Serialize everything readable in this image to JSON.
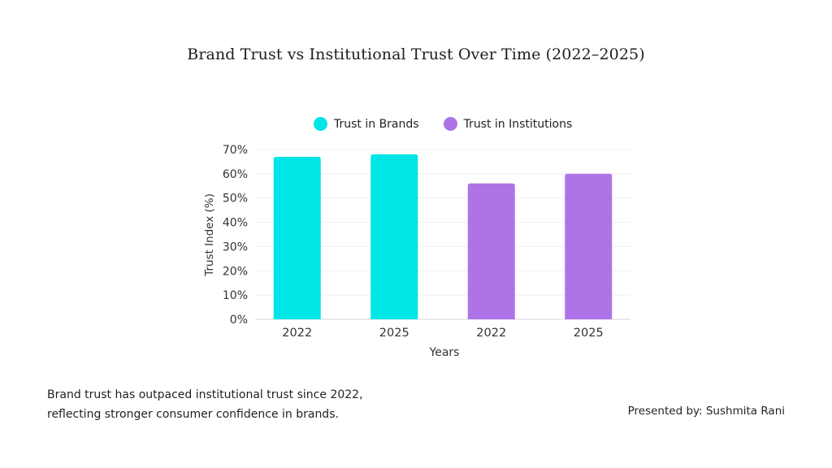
{
  "chart_data": {
    "type": "bar",
    "title": "Brand Trust vs Institutional Trust Over Time (2022–2025)",
    "xlabel": "Years",
    "ylabel": "Trust Index (%)",
    "ylim": [
      0,
      70
    ],
    "yticks": [
      "0%",
      "10%",
      "20%",
      "30%",
      "40%",
      "50%",
      "60%",
      "70%"
    ],
    "ytick_values": [
      0,
      10,
      20,
      30,
      40,
      50,
      60,
      70
    ],
    "grid": true,
    "legend_position": "top-center",
    "categories": [
      "2022",
      "2025",
      "2022",
      "2025"
    ],
    "series": [
      {
        "name": "Trust in Brands",
        "color": "#00E5E5",
        "values": [
          67,
          68,
          null,
          null
        ]
      },
      {
        "name": "Trust in Institutions",
        "color": "#AE73E6",
        "values": [
          null,
          null,
          56,
          60
        ]
      }
    ]
  },
  "caption": {
    "line1": "Brand trust has outpaced institutional trust since 2022,",
    "line2": "reflecting stronger consumer confidence in brands."
  },
  "presenter": "Presented by: Sushmita Rani"
}
